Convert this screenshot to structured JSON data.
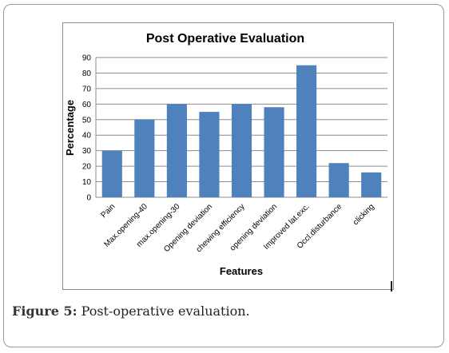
{
  "chart_data": {
    "type": "bar",
    "title": "Post Operative Evaluation",
    "xlabel": "Features",
    "ylabel": "Percentage",
    "categories": [
      "Pain",
      "Max.opening-40",
      "max.opening-30",
      "Opening deviation",
      "chewing efficiency",
      "opening deviation",
      "Improved lat.exc.",
      "Occl.disturbance",
      "clicking"
    ],
    "values": [
      30,
      50,
      60,
      55,
      60,
      58,
      85,
      22,
      16
    ],
    "ylim": [
      0,
      90
    ],
    "yticks": [
      "0",
      "10",
      "20",
      "30",
      "40",
      "50",
      "60",
      "70",
      "80",
      "90"
    ],
    "grid": true,
    "bar_color": "#4f81bd"
  },
  "caption": {
    "label": "Figure 5:",
    "text": "Post-operative evaluation."
  }
}
